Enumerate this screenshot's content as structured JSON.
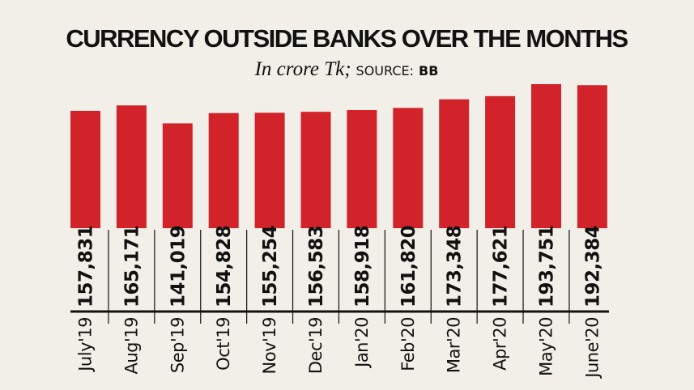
{
  "chart_data": {
    "type": "bar",
    "title": "CURRENCY OUTSIDE BANKS OVER THE MONTHS",
    "subtitle_unit": "In crore Tk;",
    "source_label": "SOURCE:",
    "source": "BB",
    "categories": [
      "July'19",
      "Aug'19",
      "Sep'19",
      "Oct'19",
      "Nov'19",
      "Dec'19",
      "Jan'20",
      "Feb'20",
      "Mar'20",
      "Apr'20",
      "May'20",
      "June'20"
    ],
    "values": [
      157831,
      165171,
      141019,
      154828,
      155254,
      156583,
      158918,
      161820,
      173348,
      177621,
      193751,
      192384
    ],
    "value_labels": [
      "157,831",
      "165,171",
      "141,019",
      "154,828",
      "155,254",
      "156,583",
      "158,918",
      "161,820",
      "173,348",
      "177,621",
      "193,751",
      "192,384"
    ],
    "ylim": [
      0,
      193751
    ],
    "grid": false,
    "colors": {
      "bar": "#d2232a",
      "background": "#f2efe8",
      "text": "#111111"
    }
  }
}
